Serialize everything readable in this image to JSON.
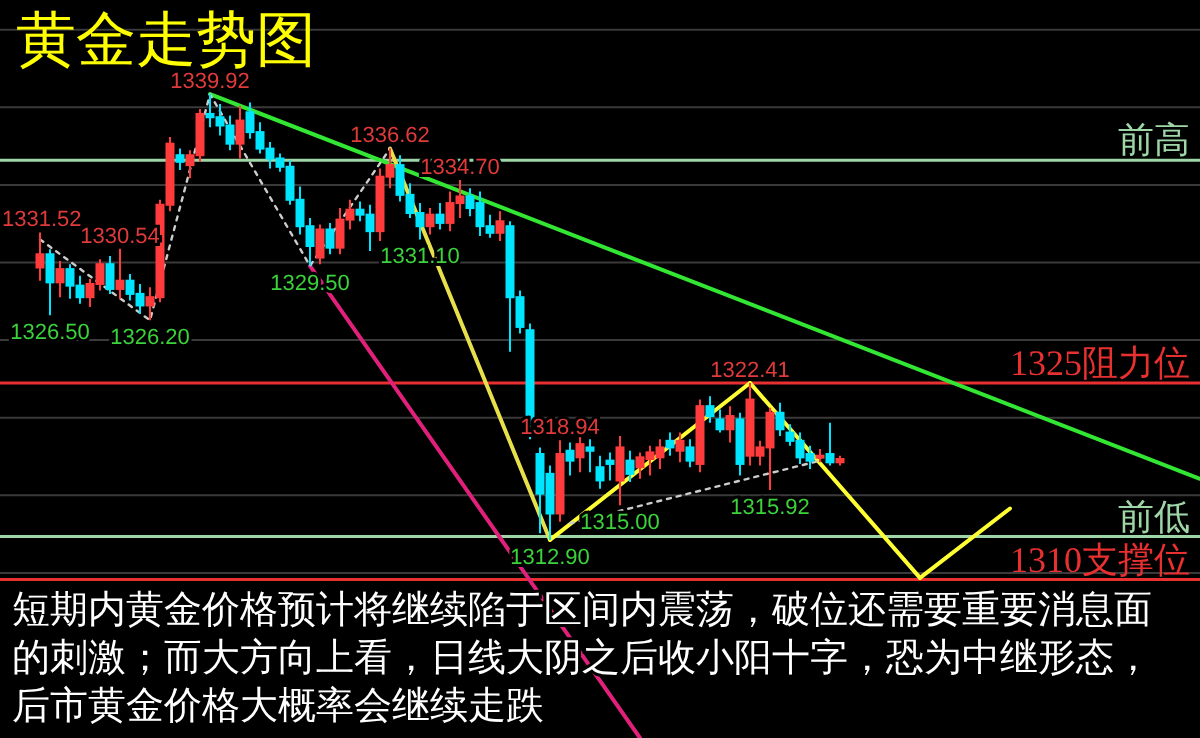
{
  "chart_data": {
    "type": "candlestick",
    "title": "黄金走势图",
    "categories": [
      null,
      null,
      null,
      null,
      null,
      null,
      null,
      null,
      null,
      null,
      null,
      null,
      null,
      null,
      null,
      null,
      null,
      null,
      null,
      null,
      null,
      null,
      null,
      null,
      null,
      null,
      null,
      null,
      null,
      null,
      null,
      null,
      null,
      null,
      null,
      null,
      null,
      null,
      null,
      null,
      null,
      null,
      null,
      null,
      null,
      null,
      null,
      null,
      null,
      null,
      null,
      null,
      null,
      null,
      null,
      null,
      null,
      null,
      null,
      null,
      null,
      null,
      null,
      null,
      null,
      null,
      null,
      null,
      null,
      null,
      null,
      null,
      null,
      null,
      null,
      null,
      null,
      null,
      null,
      null,
      null,
      null,
      null,
      null,
      null,
      null,
      null,
      null,
      null,
      null,
      null,
      null,
      null,
      null,
      null,
      null,
      null,
      null,
      null,
      null,
      null,
      null,
      null,
      null,
      null,
      null,
      null,
      null,
      null,
      null,
      null,
      null,
      null,
      null,
      null,
      null,
      null
    ],
    "ohlc": [
      [
        1329.4,
        1331.52,
        1328.6,
        1330.2
      ],
      [
        1330.2,
        1330.5,
        1326.5,
        1328.5
      ],
      [
        1328.5,
        1329.8,
        1327.6,
        1329.3
      ],
      [
        1329.3,
        1329.6,
        1327.5,
        1328.3
      ],
      [
        1328.3,
        1328.9,
        1327.2,
        1327.6
      ],
      [
        1327.6,
        1328.7,
        1327.0,
        1328.4
      ],
      [
        1328.4,
        1329.9,
        1328.0,
        1329.6
      ],
      [
        1329.6,
        1330.1,
        1327.8,
        1328.1
      ],
      [
        1328.1,
        1330.54,
        1327.5,
        1328.6
      ],
      [
        1328.6,
        1329.0,
        1327.4,
        1327.8
      ],
      [
        1327.8,
        1328.4,
        1326.6,
        1327.1
      ],
      [
        1327.1,
        1328.2,
        1326.2,
        1327.6
      ],
      [
        1327.6,
        1333.5,
        1327.3,
        1333.2
      ],
      [
        1333.2,
        1337.3,
        1332.8,
        1336.9
      ],
      [
        1336.2,
        1336.6,
        1335.3,
        1335.8
      ],
      [
        1335.6,
        1336.5,
        1334.8,
        1336.2
      ],
      [
        1336.2,
        1339.0,
        1335.8,
        1338.7
      ],
      [
        1338.7,
        1339.92,
        1337.9,
        1338.5
      ],
      [
        1338.5,
        1339.3,
        1337.4,
        1338.0
      ],
      [
        1338.0,
        1338.6,
        1336.5,
        1336.9
      ],
      [
        1336.9,
        1339.2,
        1336.0,
        1338.3
      ],
      [
        1338.8,
        1339.4,
        1337.2,
        1337.6
      ],
      [
        1337.6,
        1338.2,
        1336.3,
        1336.6
      ],
      [
        1336.6,
        1337.0,
        1335.4,
        1336.0
      ],
      [
        1336.0,
        1336.3,
        1335.2,
        1335.5
      ],
      [
        1335.5,
        1335.9,
        1333.2,
        1333.5
      ],
      [
        1333.5,
        1334.3,
        1331.4,
        1331.9
      ],
      [
        1331.9,
        1332.4,
        1329.5,
        1330.7
      ],
      [
        1330.0,
        1332.0,
        1329.6,
        1331.7
      ],
      [
        1331.7,
        1332.1,
        1330.2,
        1330.6
      ],
      [
        1330.6,
        1333.0,
        1330.2,
        1332.3
      ],
      [
        1332.3,
        1333.5,
        1331.7,
        1332.9
      ],
      [
        1332.9,
        1333.4,
        1332.2,
        1332.6
      ],
      [
        1332.6,
        1333.2,
        1330.4,
        1331.6
      ],
      [
        1331.6,
        1335.4,
        1331.0,
        1334.9
      ],
      [
        1334.9,
        1336.62,
        1334.2,
        1335.6
      ],
      [
        1335.6,
        1336.2,
        1333.4,
        1333.8
      ],
      [
        1333.8,
        1334.5,
        1332.4,
        1332.7
      ],
      [
        1332.7,
        1333.3,
        1331.1,
        1331.9
      ],
      [
        1331.9,
        1333.0,
        1331.4,
        1332.6
      ],
      [
        1332.6,
        1333.3,
        1331.7,
        1332.1
      ],
      [
        1332.1,
        1334.0,
        1331.6,
        1333.3
      ],
      [
        1333.3,
        1334.7,
        1332.4,
        1333.7
      ],
      [
        1333.7,
        1334.2,
        1332.5,
        1333.0
      ],
      [
        1333.3,
        1334.0,
        1331.3,
        1331.9
      ],
      [
        1331.9,
        1332.6,
        1331.2,
        1331.5
      ],
      [
        1331.5,
        1332.8,
        1331.0,
        1332.2
      ],
      [
        1331.9,
        1332.2,
        1324.3,
        1327.6
      ],
      [
        1327.6,
        1328.0,
        1325.4,
        1325.8
      ],
      [
        1325.6,
        1326.0,
        1319.0,
        1320.2
      ],
      [
        1318.1,
        1318.5,
        1313.3,
        1315.7
      ],
      [
        1316.9,
        1317.4,
        1312.9,
        1314.5
      ],
      [
        1314.5,
        1318.94,
        1314.0,
        1318.1
      ],
      [
        1318.3,
        1318.8,
        1316.8,
        1317.7
      ],
      [
        1317.9,
        1319.5,
        1317.0,
        1318.7
      ],
      [
        1318.5,
        1319.0,
        1317.0,
        1318.3
      ],
      [
        1317.3,
        1318.0,
        1316.0,
        1316.5
      ],
      [
        1317.7,
        1318.2,
        1316.5,
        1317.5
      ],
      [
        1316.5,
        1319.2,
        1315.0,
        1318.5
      ],
      [
        1317.7,
        1318.3,
        1316.4,
        1316.9
      ],
      [
        1317.3,
        1318.2,
        1316.6,
        1317.9
      ],
      [
        1317.8,
        1318.6,
        1316.8,
        1318.2
      ],
      [
        1317.9,
        1319.0,
        1317.2,
        1318.5
      ],
      [
        1318.9,
        1319.4,
        1318.0,
        1318.5
      ],
      [
        1318.3,
        1319.4,
        1317.6,
        1318.9
      ],
      [
        1318.5,
        1319.0,
        1317.3,
        1317.7
      ],
      [
        1317.5,
        1321.4,
        1317.0,
        1321.0
      ],
      [
        1321.0,
        1321.6,
        1320.0,
        1320.4
      ],
      [
        1320.2,
        1320.8,
        1319.4,
        1319.6
      ],
      [
        1319.6,
        1321.0,
        1318.8,
        1320.4
      ],
      [
        1320.2,
        1320.6,
        1316.8,
        1317.5
      ],
      [
        1318.0,
        1322.41,
        1317.4,
        1321.4
      ],
      [
        1318.0,
        1318.9,
        1317.4,
        1318.5
      ],
      [
        1318.5,
        1320.9,
        1315.92,
        1320.6
      ],
      [
        1320.6,
        1321.2,
        1319.2,
        1319.6
      ],
      [
        1319.4,
        1319.9,
        1318.6,
        1318.9
      ],
      [
        1318.9,
        1319.4,
        1317.5,
        1317.9
      ],
      [
        1318.1,
        1318.6,
        1317.2,
        1317.7
      ],
      [
        1317.9,
        1318.4,
        1317.6,
        1318.0
      ],
      [
        1318.1,
        1320.0,
        1317.4,
        1317.6
      ],
      [
        1317.6,
        1318.0,
        1317.4,
        1317.8
      ],
      null,
      null,
      null,
      null,
      null,
      null,
      null,
      null,
      null,
      null,
      null,
      null,
      null,
      null,
      null,
      null,
      null,
      null,
      null,
      null,
      null,
      null,
      null,
      null,
      null,
      null,
      null,
      null,
      null,
      null,
      null,
      null,
      null,
      null,
      null,
      null
    ],
    "yticks": [
      {
        "value": 1343.8,
        "label": null
      },
      {
        "value": 1339.1,
        "label": null
      },
      {
        "value": 1334.4,
        "label": null
      },
      {
        "value": 1329.7,
        "label": null
      },
      {
        "value": 1325.0,
        "label": null
      },
      {
        "value": 1320.3,
        "label": null
      },
      {
        "value": 1315.6,
        "label": null
      },
      {
        "value": 1310.9,
        "label": null
      }
    ],
    "grid": "y",
    "series": [
      {
        "type": "line",
        "color": "#33e633",
        "values": [
          null,
          null,
          null,
          null,
          null,
          null,
          null,
          null,
          null,
          null,
          null,
          null,
          null,
          null,
          null,
          null,
          null,
          1339.9,
          null,
          null,
          null,
          null,
          null,
          null,
          null,
          null,
          null,
          null,
          null,
          null,
          null,
          null,
          null,
          null,
          null,
          null,
          null,
          null,
          null,
          null,
          null,
          null,
          null,
          null,
          null,
          null,
          null,
          null,
          null,
          null,
          null,
          null,
          null,
          null,
          null,
          null,
          null,
          null,
          null,
          null,
          null,
          null,
          null,
          null,
          null,
          null,
          null,
          null,
          null,
          null,
          null,
          null,
          null,
          null,
          null,
          null,
          null,
          null,
          null,
          null,
          null,
          null,
          null,
          null,
          null,
          null,
          null,
          null,
          null,
          null,
          null,
          null,
          null,
          null,
          null,
          null,
          null,
          null,
          null,
          null,
          null,
          null,
          null,
          null,
          null,
          null,
          null,
          null,
          null,
          null,
          null,
          null,
          null,
          null,
          null,
          null,
          1316.6
        ]
      },
      {
        "type": "line",
        "color": "#e0207a",
        "values": [
          null,
          null,
          null,
          null,
          null,
          null,
          null,
          null,
          null,
          null,
          null,
          null,
          null,
          null,
          null,
          null,
          null,
          null,
          null,
          null,
          null,
          null,
          null,
          null,
          null,
          null,
          null,
          1329.5,
          null,
          null,
          null,
          null,
          null,
          null,
          null,
          null,
          null,
          null,
          null,
          null,
          null,
          null,
          null,
          null,
          null,
          null,
          null,
          null,
          null,
          null,
          null,
          null,
          null,
          null,
          null,
          null,
          null,
          null,
          null,
          null,
          1300.9,
          null,
          null,
          null,
          null,
          null,
          null,
          null,
          null,
          null,
          null,
          null,
          null,
          null,
          null,
          null,
          null,
          null,
          null,
          null,
          null,
          null,
          null,
          null,
          null,
          null,
          null,
          null,
          null,
          null,
          null,
          null,
          null,
          null,
          null,
          null,
          null,
          null,
          null,
          null,
          null,
          null,
          null,
          null,
          null,
          null,
          null,
          null,
          null,
          null,
          null,
          null,
          null,
          null,
          null,
          null,
          null
        ]
      },
      {
        "type": "line",
        "color": "#e8e04a",
        "values": [
          null,
          null,
          null,
          null,
          null,
          null,
          null,
          null,
          null,
          null,
          null,
          null,
          null,
          null,
          null,
          null,
          null,
          null,
          null,
          null,
          null,
          null,
          null,
          null,
          null,
          null,
          null,
          null,
          null,
          null,
          null,
          null,
          null,
          null,
          null,
          1336.6,
          null,
          null,
          null,
          null,
          null,
          null,
          null,
          null,
          null,
          null,
          null,
          null,
          null,
          null,
          null,
          1312.9,
          null,
          null,
          null,
          null,
          null,
          null,
          null,
          null,
          null,
          null,
          null,
          null,
          null,
          null,
          null,
          null,
          null,
          null,
          null,
          null,
          null,
          null,
          null,
          null,
          null,
          null,
          null,
          null,
          null,
          null,
          null,
          null,
          null,
          null,
          null,
          null,
          null,
          null,
          null,
          null,
          null,
          null,
          null,
          null,
          null,
          null,
          null,
          null,
          null,
          null,
          null,
          null,
          null,
          null,
          null,
          null,
          null,
          null,
          null,
          null,
          null,
          null,
          null,
          null,
          null
        ]
      },
      {
        "type": "line",
        "color": "#ffff33",
        "values": [
          null,
          null,
          null,
          null,
          null,
          null,
          null,
          null,
          null,
          null,
          null,
          null,
          null,
          null,
          null,
          null,
          null,
          null,
          null,
          null,
          null,
          null,
          null,
          null,
          null,
          null,
          null,
          null,
          null,
          null,
          null,
          null,
          null,
          null,
          null,
          null,
          null,
          null,
          null,
          null,
          null,
          null,
          null,
          null,
          null,
          null,
          null,
          null,
          null,
          null,
          null,
          1312.9,
          null,
          null,
          null,
          null,
          null,
          null,
          null,
          null,
          null,
          null,
          null,
          null,
          null,
          null,
          null,
          null,
          null,
          null,
          null,
          1322.4,
          null,
          null,
          null,
          null,
          null,
          null,
          null,
          null,
          null,
          null,
          null,
          null,
          null,
          null,
          null,
          null,
          null,
          null,
          null,
          null,
          null,
          null,
          null,
          null,
          null,
          null,
          null,
          null,
          null,
          null,
          null,
          null,
          null,
          null,
          null,
          null,
          null,
          null,
          null,
          null,
          null,
          null,
          null,
          null,
          null
        ]
      },
      {
        "type": "line",
        "color": "#ffff33",
        "values": [
          null,
          null,
          null,
          null,
          null,
          null,
          null,
          null,
          null,
          null,
          null,
          null,
          null,
          null,
          null,
          null,
          null,
          null,
          null,
          null,
          null,
          null,
          null,
          null,
          null,
          null,
          null,
          null,
          null,
          null,
          null,
          null,
          null,
          null,
          null,
          null,
          null,
          null,
          null,
          null,
          null,
          null,
          null,
          null,
          null,
          null,
          null,
          null,
          null,
          null,
          null,
          null,
          null,
          null,
          null,
          null,
          null,
          null,
          null,
          null,
          null,
          null,
          null,
          null,
          null,
          null,
          null,
          null,
          null,
          null,
          null,
          1322.4,
          null,
          null,
          null,
          null,
          null,
          null,
          null,
          null,
          null,
          null,
          null,
          null,
          null,
          null,
          null,
          null,
          1310.6,
          null,
          null,
          null,
          null,
          null,
          null,
          null,
          null,
          null,
          null,
          null,
          null,
          null,
          null,
          null,
          null,
          null,
          null,
          null,
          null,
          null,
          null,
          null,
          null,
          null,
          null,
          null,
          null
        ]
      },
      {
        "type": "line",
        "color": "#ffff33",
        "values": [
          null,
          null,
          null,
          null,
          null,
          null,
          null,
          null,
          null,
          null,
          null,
          null,
          null,
          null,
          null,
          null,
          null,
          null,
          null,
          null,
          null,
          null,
          null,
          null,
          null,
          null,
          null,
          null,
          null,
          null,
          null,
          null,
          null,
          null,
          null,
          null,
          null,
          null,
          null,
          null,
          null,
          null,
          null,
          null,
          null,
          null,
          null,
          null,
          null,
          null,
          null,
          null,
          null,
          null,
          null,
          null,
          null,
          null,
          null,
          null,
          null,
          null,
          null,
          null,
          null,
          null,
          null,
          null,
          null,
          null,
          null,
          null,
          null,
          null,
          null,
          null,
          null,
          null,
          null,
          null,
          null,
          null,
          null,
          null,
          null,
          null,
          null,
          null,
          1310.6,
          null,
          null,
          null,
          null,
          null,
          null,
          null,
          null,
          1314.8,
          null,
          null,
          null,
          null,
          null,
          null,
          null,
          null,
          null,
          null,
          null,
          null,
          null,
          null,
          null,
          null,
          null,
          null,
          null
        ]
      },
      {
        "type": "line",
        "color": "#cccccc",
        "line_style": "dotted",
        "values": [
          1331.1,
          null,
          null,
          null,
          null,
          null,
          null,
          null,
          null,
          null,
          null,
          1326.2,
          null,
          null,
          null,
          null,
          null,
          1339.9,
          null,
          null,
          null,
          null,
          null,
          null,
          null,
          null,
          null,
          1329.5,
          null,
          null,
          null,
          null,
          null,
          null,
          null,
          1336.6,
          null,
          null,
          null,
          null,
          null,
          null,
          null,
          null,
          null,
          null,
          null,
          null,
          null,
          null,
          null,
          null,
          null,
          null,
          null,
          null,
          null,
          null,
          null,
          null,
          null,
          null,
          null,
          null,
          null,
          null,
          null,
          null,
          null,
          null,
          null,
          null,
          null,
          null,
          null,
          null,
          null,
          null,
          null,
          null,
          null,
          null,
          null,
          null,
          null,
          null,
          null,
          null,
          null,
          null,
          null,
          null,
          null,
          null,
          null,
          null,
          null,
          null,
          null,
          null,
          null,
          null,
          null,
          null,
          null,
          null,
          null,
          null,
          null,
          null,
          null,
          null,
          null,
          null,
          null,
          null,
          null
        ]
      },
      {
        "type": "line",
        "color": "#cccccc",
        "line_style": "dotted",
        "values": [
          null,
          null,
          null,
          null,
          null,
          null,
          null,
          null,
          null,
          null,
          null,
          null,
          null,
          null,
          null,
          null,
          null,
          null,
          null,
          null,
          null,
          null,
          null,
          null,
          null,
          null,
          null,
          null,
          null,
          null,
          null,
          null,
          null,
          null,
          null,
          null,
          null,
          null,
          null,
          null,
          null,
          null,
          null,
          null,
          null,
          null,
          null,
          null,
          null,
          null,
          null,
          null,
          null,
          1313.9,
          null,
          null,
          null,
          null,
          null,
          null,
          null,
          null,
          null,
          null,
          null,
          null,
          null,
          null,
          null,
          null,
          null,
          null,
          null,
          null,
          null,
          null,
          null,
          null,
          1317.7,
          null,
          null,
          null,
          null,
          null,
          null,
          null,
          null,
          null,
          null,
          null,
          null,
          null,
          null,
          null,
          null,
          null,
          null,
          null,
          null,
          null,
          null,
          null,
          null,
          null,
          null,
          null,
          null,
          null,
          null,
          null,
          null,
          null,
          null,
          null,
          null,
          null,
          null
        ]
      }
    ],
    "ref_lines": [
      {
        "axis": "y",
        "value": 1322.4,
        "label": "1325阻力位",
        "color": "#e83030"
      },
      {
        "axis": "y",
        "value": 1310.5,
        "label": "1310支撑位",
        "color": "#e83030"
      },
      {
        "axis": "y",
        "value": 1335.9,
        "label": "前高",
        "color": "#9fd6a8"
      },
      {
        "axis": "y",
        "value": 1313.1,
        "label": "前低",
        "color": "#9fd6a8"
      }
    ],
    "annotations": [
      {
        "text": "1339.92",
        "y": 1339.92
      },
      {
        "text": "1336.62",
        "y": 1336.62
      },
      {
        "text": "1334.70",
        "y": 1334.7
      },
      {
        "text": "1331.52",
        "y": 1331.52
      },
      {
        "text": "1330.54",
        "y": 1330.54
      },
      {
        "text": "1326.50",
        "y": 1326.5
      },
      {
        "text": "1326.20",
        "y": 1326.2
      },
      {
        "text": "1329.50",
        "y": 1329.5
      },
      {
        "text": "1331.10",
        "y": 1331.1
      },
      {
        "text": "1318.94",
        "y": 1318.94
      },
      {
        "text": "1322.41",
        "y": 1322.41
      },
      {
        "text": "1312.90",
        "y": 1312.9
      },
      {
        "text": "1315.00",
        "y": 1315.0
      },
      {
        "text": "1315.92",
        "y": 1315.92
      },
      "短期内黄金价格预计将继续陷于区间内震荡，破位还需要重要消息面的刺激；而大方向上看，日线大阴之后收小阳十字，恐为中继形态，后市黄金价格大概率会继续走跌"
    ]
  }
}
